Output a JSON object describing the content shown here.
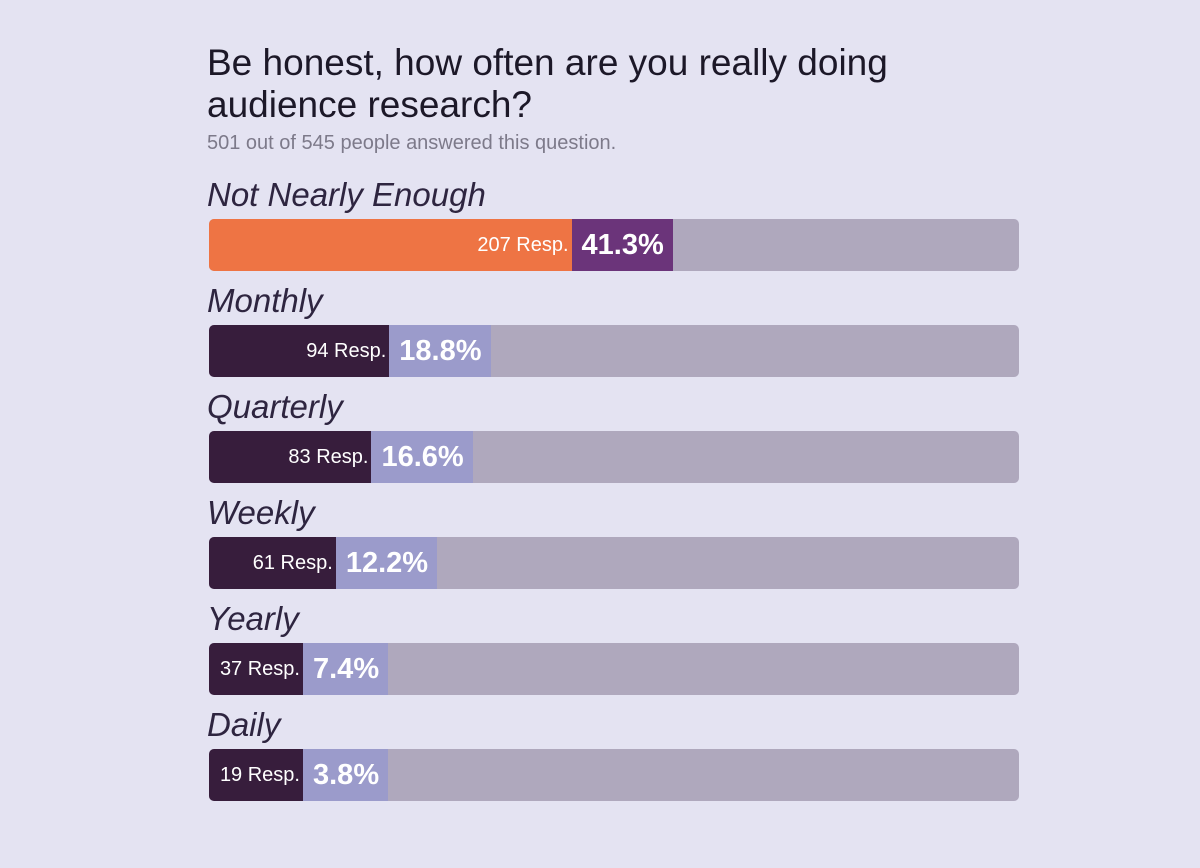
{
  "header": {
    "title": "Be honest, how often are you really doing audience research?",
    "subtitle": "501 out of 545 people answered this question."
  },
  "colors": {
    "background": "#e4e3f2",
    "track": "#afa8bd",
    "top_fill": "#ee7444",
    "top_pct": "#6b347a",
    "fill": "#371d3c",
    "pct": "#9b9bcb"
  },
  "chart_data": {
    "type": "bar",
    "orientation": "horizontal",
    "categories": [
      "Not Nearly Enough",
      "Monthly",
      "Quarterly",
      "Weekly",
      "Yearly",
      "Daily"
    ],
    "values": [
      41.3,
      18.8,
      16.6,
      12.2,
      7.4,
      3.8
    ],
    "responses": [
      207,
      94,
      83,
      61,
      37,
      19
    ],
    "response_labels": [
      "207 Resp.",
      "94 Resp.",
      "83 Resp.",
      "61 Resp.",
      "37 Resp.",
      "19 Resp."
    ],
    "value_labels": [
      "41.3%",
      "18.8%",
      "16.6%",
      "12.2%",
      "7.4%",
      "3.8%"
    ],
    "xlim": [
      0,
      100
    ],
    "grid": false
  }
}
